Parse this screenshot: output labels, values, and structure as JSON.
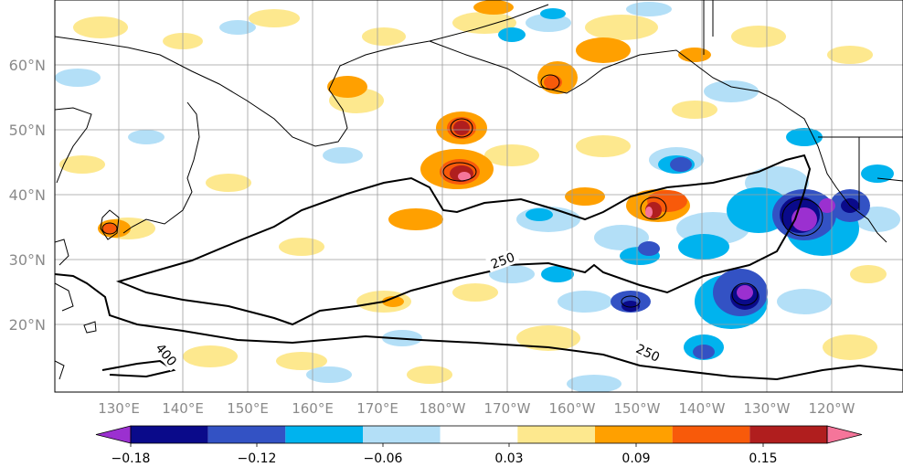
{
  "map": {
    "lon_labels": [
      "130°E",
      "140°E",
      "150°E",
      "160°E",
      "170°E",
      "180°W",
      "170°W",
      "160°W",
      "150°W",
      "140°W",
      "130°W",
      "120°W"
    ],
    "lat_labels": [
      "60°N",
      "50°N",
      "40°N",
      "30°N",
      "20°N"
    ],
    "contour_labels": [
      "250",
      "250",
      "400"
    ],
    "colors": {
      "land_outline": "#000000",
      "grid": "#9e9e9e",
      "contour": "#000000"
    }
  },
  "colorbar": {
    "tick_labels": [
      "−0.18",
      "−0.12",
      "−0.06",
      "0.03",
      "0.09",
      "0.15"
    ],
    "colors": [
      "#9b30d0",
      "#0a0a8a",
      "#3352c4",
      "#00b3ee",
      "#b3dff7",
      "#ffffff",
      "#fde88e",
      "#ffa000",
      "#f85a0a",
      "#b01e1e",
      "#f5759a"
    ]
  }
}
